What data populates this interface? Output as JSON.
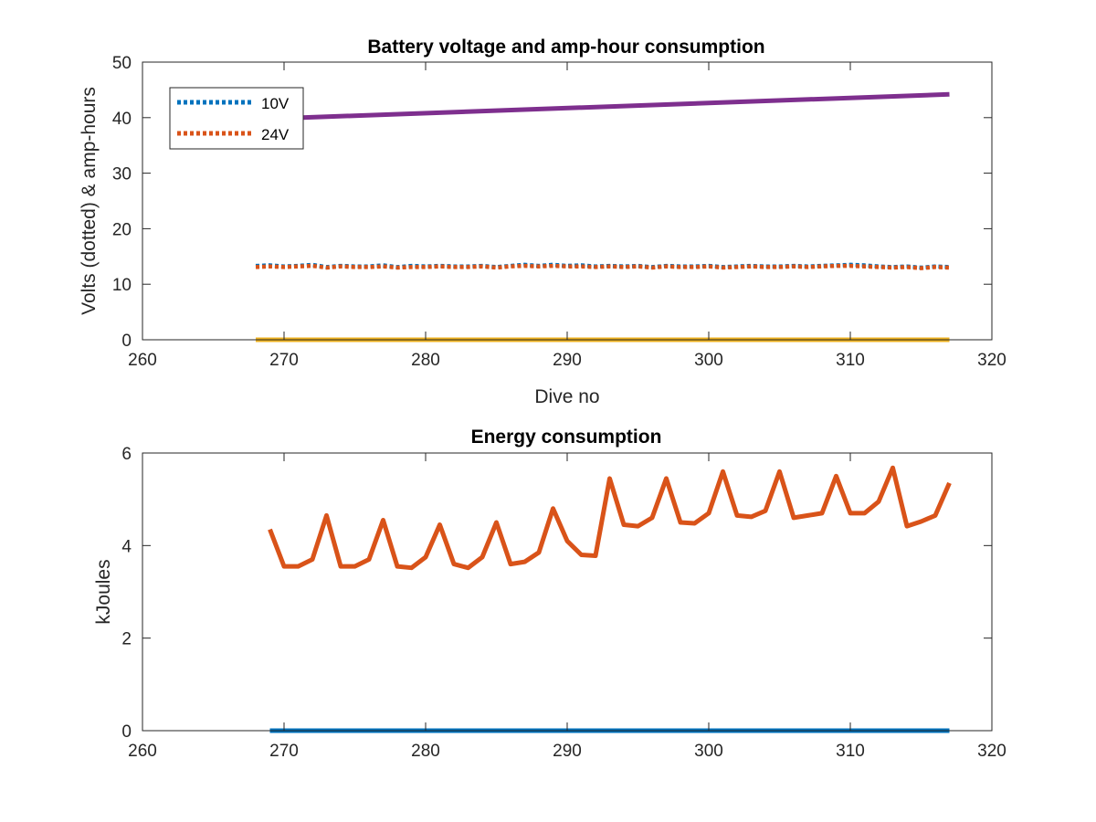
{
  "colors": {
    "blue": "#0072BD",
    "orange": "#D95319",
    "yellow": "#EDB120",
    "purple": "#7E2F8E",
    "axis": "#262626"
  },
  "chart_data": [
    {
      "type": "line",
      "title": "Battery voltage and amp-hour consumption",
      "xlabel": "Dive no",
      "ylabel": "Volts (dotted) & amp-hours",
      "xlim": [
        260,
        320
      ],
      "ylim": [
        0,
        50
      ],
      "xticks": [
        "260",
        "270",
        "280",
        "290",
        "300",
        "310",
        "320"
      ],
      "yticks": [
        "0",
        "10",
        "20",
        "30",
        "40",
        "50"
      ],
      "grid": false,
      "legend": {
        "position": "top-left",
        "entries": [
          "10V",
          "24V"
        ]
      },
      "series": [
        {
          "name": "10V",
          "style": "dotted",
          "color": "blue",
          "x": [
            268,
            269,
            270,
            271,
            272,
            273,
            274,
            275,
            276,
            277,
            278,
            279,
            280,
            281,
            282,
            283,
            284,
            285,
            286,
            287,
            288,
            289,
            290,
            291,
            292,
            293,
            294,
            295,
            296,
            297,
            298,
            299,
            300,
            301,
            302,
            303,
            304,
            305,
            306,
            307,
            308,
            309,
            310,
            311,
            312,
            313,
            314,
            315,
            316,
            317
          ],
          "y": [
            13.3,
            13.4,
            13.2,
            13.3,
            13.5,
            13.1,
            13.3,
            13.2,
            13.2,
            13.4,
            13.1,
            13.3,
            13.2,
            13.3,
            13.2,
            13.2,
            13.3,
            13.1,
            13.3,
            13.5,
            13.3,
            13.5,
            13.3,
            13.4,
            13.2,
            13.3,
            13.2,
            13.3,
            13.1,
            13.3,
            13.2,
            13.2,
            13.3,
            13.1,
            13.2,
            13.3,
            13.2,
            13.2,
            13.3,
            13.2,
            13.3,
            13.4,
            13.5,
            13.4,
            13.2,
            13.1,
            13.2,
            13.0,
            13.2,
            13.1
          ]
        },
        {
          "name": "24V",
          "style": "dotted",
          "color": "orange",
          "x": [
            268,
            269,
            270,
            271,
            272,
            273,
            274,
            275,
            276,
            277,
            278,
            279,
            280,
            281,
            282,
            283,
            284,
            285,
            286,
            287,
            288,
            289,
            290,
            291,
            292,
            293,
            294,
            295,
            296,
            297,
            298,
            299,
            300,
            301,
            302,
            303,
            304,
            305,
            306,
            307,
            308,
            309,
            310,
            311,
            312,
            313,
            314,
            315,
            316,
            317
          ],
          "y": [
            13.1,
            13.2,
            13.1,
            13.2,
            13.3,
            13.0,
            13.2,
            13.1,
            13.1,
            13.2,
            13.0,
            13.1,
            13.1,
            13.2,
            13.1,
            13.1,
            13.2,
            13.0,
            13.2,
            13.3,
            13.2,
            13.3,
            13.2,
            13.2,
            13.1,
            13.2,
            13.1,
            13.2,
            13.0,
            13.2,
            13.1,
            13.1,
            13.2,
            13.0,
            13.1,
            13.2,
            13.1,
            13.1,
            13.2,
            13.1,
            13.2,
            13.3,
            13.3,
            13.2,
            13.1,
            13.0,
            13.1,
            12.9,
            13.1,
            13.0
          ]
        },
        {
          "style": "solid",
          "color": "purple",
          "x": [
            268,
            317
          ],
          "y": [
            39.7,
            44.2
          ]
        },
        {
          "style": "solid",
          "color": "yellow",
          "x": [
            268,
            317
          ],
          "y": [
            0,
            0
          ]
        }
      ]
    },
    {
      "type": "line",
      "title": "Energy consumption",
      "xlabel": "",
      "ylabel": "kJoules",
      "xlim": [
        260,
        320
      ],
      "ylim": [
        0,
        6
      ],
      "xticks": [
        "260",
        "270",
        "280",
        "290",
        "300",
        "310",
        "320"
      ],
      "yticks": [
        "0",
        "2",
        "4",
        "6"
      ],
      "grid": false,
      "series": [
        {
          "style": "solid",
          "color": "orange",
          "x": [
            269,
            270,
            271,
            272,
            273,
            274,
            275,
            276,
            277,
            278,
            279,
            280,
            281,
            282,
            283,
            284,
            285,
            286,
            287,
            288,
            289,
            290,
            291,
            292,
            293,
            294,
            295,
            296,
            297,
            298,
            299,
            300,
            301,
            302,
            303,
            304,
            305,
            306,
            307,
            308,
            309,
            310,
            311,
            312,
            313,
            314,
            315,
            316,
            317
          ],
          "y": [
            4.35,
            3.55,
            3.55,
            3.7,
            4.65,
            3.55,
            3.55,
            3.7,
            4.55,
            3.55,
            3.52,
            3.75,
            4.45,
            3.6,
            3.52,
            3.75,
            4.5,
            3.6,
            3.65,
            3.85,
            4.8,
            4.1,
            3.8,
            3.78,
            5.45,
            4.45,
            4.42,
            4.6,
            5.45,
            4.5,
            4.48,
            4.7,
            5.6,
            4.65,
            4.62,
            4.75,
            5.6,
            4.6,
            4.65,
            4.7,
            5.5,
            4.7,
            4.7,
            4.95,
            5.68,
            4.42,
            4.52,
            4.65,
            5.35
          ]
        },
        {
          "style": "solid",
          "color": "blue",
          "x": [
            269,
            317
          ],
          "y": [
            0,
            0
          ]
        }
      ]
    }
  ]
}
